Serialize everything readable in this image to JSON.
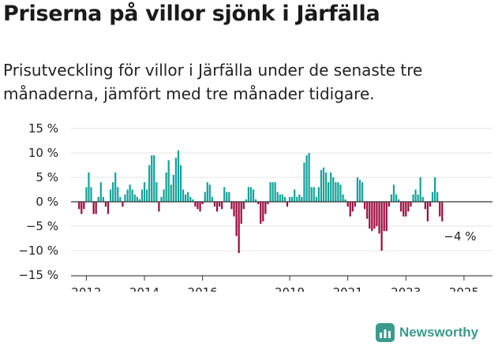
{
  "title": "Priserna på villor sjönk i Järfälla",
  "subtitle": "Prisutveckling för villor i Järfälla under de senaste tre månaderna, jämfört med tre månader tidigare.",
  "brand": "Newsworthy",
  "colors": {
    "positive": "#12a39a",
    "negative": "#9b0b3f",
    "axis": "#333333",
    "grid": "#e4e4e4",
    "brand": "#3b9a8b"
  },
  "chart_data": {
    "type": "bar",
    "ylim": [
      -15,
      15
    ],
    "yticks": [
      15,
      10,
      5,
      0,
      -5,
      -10,
      -15
    ],
    "ytick_labels": [
      "15 %",
      "10 %",
      "5 %",
      "0 %",
      "−5 %",
      "−10 %",
      "−15 %"
    ],
    "xticks": [
      2012,
      2014,
      2016,
      2019,
      2021,
      2023,
      2025
    ],
    "xtick_labels": [
      "2012",
      "2014",
      "2016",
      "2019",
      "2021",
      "2023",
      "2025"
    ],
    "annotation": "−4 %",
    "start": "2011-10",
    "values": [
      -1.5,
      -2.5,
      -1.5,
      3,
      6,
      3,
      -2.5,
      -2.5,
      1,
      4,
      1,
      -1,
      -2.5,
      2.5,
      4,
      6,
      3,
      1,
      -1,
      1.5,
      2.5,
      3.5,
      2.5,
      1.5,
      1,
      0.5,
      2.5,
      4,
      2.5,
      7.5,
      9.5,
      9.5,
      4,
      -2,
      1,
      2.5,
      6,
      8.5,
      3.5,
      5.5,
      9,
      10.5,
      7.5,
      2.5,
      1.5,
      2,
      1,
      0.5,
      -1,
      -1.5,
      -2,
      -0.5,
      2,
      4,
      3.5,
      1,
      -1,
      -2,
      -1,
      -1.5,
      3,
      2,
      2,
      -1.5,
      -3,
      -7,
      -10.5,
      -4.5,
      -1.5,
      0.5,
      3,
      3,
      2.5,
      0.5,
      -0.5,
      -4.5,
      -4,
      -2.5,
      -0.5,
      4,
      4,
      4,
      2,
      1.5,
      1.5,
      1,
      -1,
      1,
      1,
      2.5,
      1,
      1.5,
      1,
      8,
      9.5,
      10,
      3,
      3,
      1,
      3,
      6.5,
      7,
      6,
      4,
      6,
      5,
      4,
      4,
      3.5,
      1.5,
      0.5,
      -1,
      -3,
      -2,
      -1,
      5,
      4.5,
      4,
      -1.5,
      -3.5,
      -5.5,
      -6,
      -5.5,
      -5,
      -6.5,
      -10,
      -6,
      -6,
      -1,
      1.5,
      3.5,
      1.5,
      0.5,
      -2,
      -3,
      -3,
      -2,
      -1,
      1.5,
      2.5,
      1.5,
      5,
      1,
      -1.5,
      -4,
      -1,
      2,
      5,
      2,
      -3,
      -4
    ],
    "xlabel": "",
    "ylabel": ""
  }
}
